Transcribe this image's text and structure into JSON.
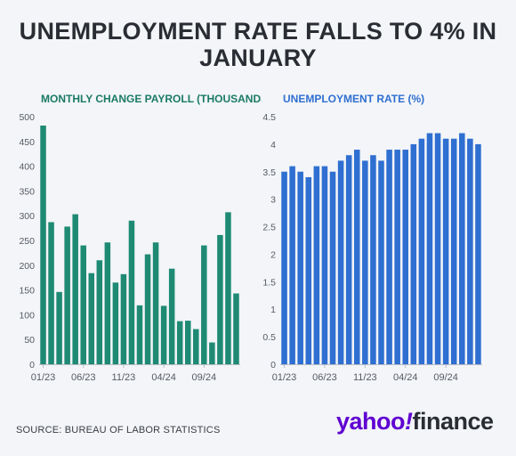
{
  "header": {
    "title_line1": "UNEMPLOYMENT RATE FALLS TO 4% IN",
    "title_line2": "JANUARY"
  },
  "footer": {
    "source": "SOURCE: BUREAU OF LABOR STATISTICS",
    "logo_brand": "yahoo",
    "logo_bang": "!",
    "logo_product": "finance"
  },
  "colors": {
    "payroll_bar": "#1e8a73",
    "rate_bar": "#2f6fd1",
    "payroll_title": "#1a7a66",
    "rate_title": "#2f6fd1",
    "brand": "#5f01d1"
  },
  "chart_data": [
    {
      "type": "bar",
      "title": "MONTHLY CHANGE PAYROLL (THOUSANDS)",
      "xlabel": "",
      "ylabel": "",
      "ylim": [
        0,
        500
      ],
      "yticks": [
        "0",
        "50",
        "100",
        "150",
        "200",
        "250",
        "300",
        "350",
        "400",
        "450",
        "500"
      ],
      "xtick_labels": [
        "01/23",
        "06/23",
        "11/23",
        "04/24",
        "09/24"
      ],
      "xtick_indices": [
        0,
        5,
        10,
        15,
        20
      ],
      "grid": false,
      "categories": [
        "01/23",
        "02/23",
        "03/23",
        "04/23",
        "05/23",
        "06/23",
        "07/23",
        "08/23",
        "09/23",
        "10/23",
        "11/23",
        "12/23",
        "01/24",
        "02/24",
        "03/24",
        "04/24",
        "05/24",
        "06/24",
        "07/24",
        "08/24",
        "09/24",
        "10/24",
        "11/24",
        "12/24",
        "01/25"
      ],
      "values": [
        482,
        287,
        146,
        278,
        303,
        240,
        184,
        210,
        246,
        165,
        182,
        290,
        119,
        222,
        246,
        118,
        193,
        87,
        88,
        71,
        240,
        44,
        261,
        307,
        143
      ]
    },
    {
      "type": "bar",
      "title": "UNEMPLOYMENT RATE (%)",
      "xlabel": "",
      "ylabel": "",
      "ylim": [
        0,
        4.5
      ],
      "yticks": [
        "0",
        "0.5",
        "1",
        "1.5",
        "2",
        "2.5",
        "3",
        "3.5",
        "4",
        "4.5"
      ],
      "xtick_labels": [
        "01/23",
        "06/23",
        "11/23",
        "04/24",
        "09/24"
      ],
      "xtick_indices": [
        0,
        5,
        10,
        15,
        20
      ],
      "grid": false,
      "categories": [
        "01/23",
        "02/23",
        "03/23",
        "04/23",
        "05/23",
        "06/23",
        "07/23",
        "08/23",
        "09/23",
        "10/23",
        "11/23",
        "12/23",
        "01/24",
        "02/24",
        "03/24",
        "04/24",
        "05/24",
        "06/24",
        "07/24",
        "08/24",
        "09/24",
        "10/24",
        "11/24",
        "12/24",
        "01/25"
      ],
      "values": [
        3.5,
        3.6,
        3.5,
        3.4,
        3.6,
        3.6,
        3.5,
        3.7,
        3.8,
        3.9,
        3.7,
        3.8,
        3.7,
        3.9,
        3.9,
        3.9,
        4.0,
        4.1,
        4.2,
        4.2,
        4.1,
        4.1,
        4.2,
        4.1,
        4.0
      ]
    }
  ]
}
